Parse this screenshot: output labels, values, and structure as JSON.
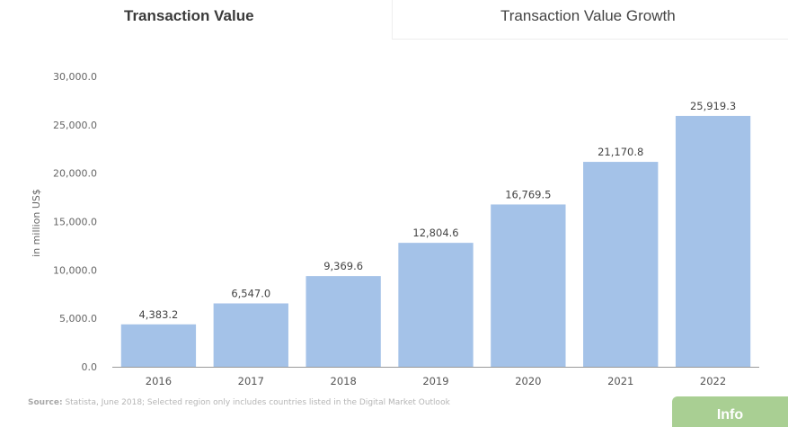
{
  "tabs": {
    "active_label": "Transaction Value",
    "inactive_label": "Transaction Value Growth"
  },
  "chart_data": {
    "type": "bar",
    "categories": [
      "2016",
      "2017",
      "2018",
      "2019",
      "2020",
      "2021",
      "2022"
    ],
    "values": [
      4383.2,
      6547.0,
      9369.6,
      12804.6,
      16769.5,
      21170.8,
      25919.3
    ],
    "value_labels": [
      "4,383.2",
      "6,547.0",
      "9,369.6",
      "12,804.6",
      "16,769.5",
      "21,170.8",
      "25,919.3"
    ],
    "title": "Transaction Value",
    "ylabel": "in million US$",
    "xlabel": "",
    "ylim": [
      0,
      30000
    ],
    "yticks": [
      0,
      5000,
      10000,
      15000,
      20000,
      25000,
      30000
    ],
    "ytick_labels": [
      "0.0",
      "5,000.0",
      "10,000.0",
      "15,000.0",
      "20,000.0",
      "25,000.0",
      "30,000.0"
    ],
    "bar_color": "#a4c2e8",
    "grid": false
  },
  "source": {
    "prefix": "Source:",
    "text": "Statista, June 2018; Selected region only includes countries listed in the Digital Market Outlook"
  },
  "info_button": {
    "label": "Info",
    "color": "#a9cf93"
  }
}
